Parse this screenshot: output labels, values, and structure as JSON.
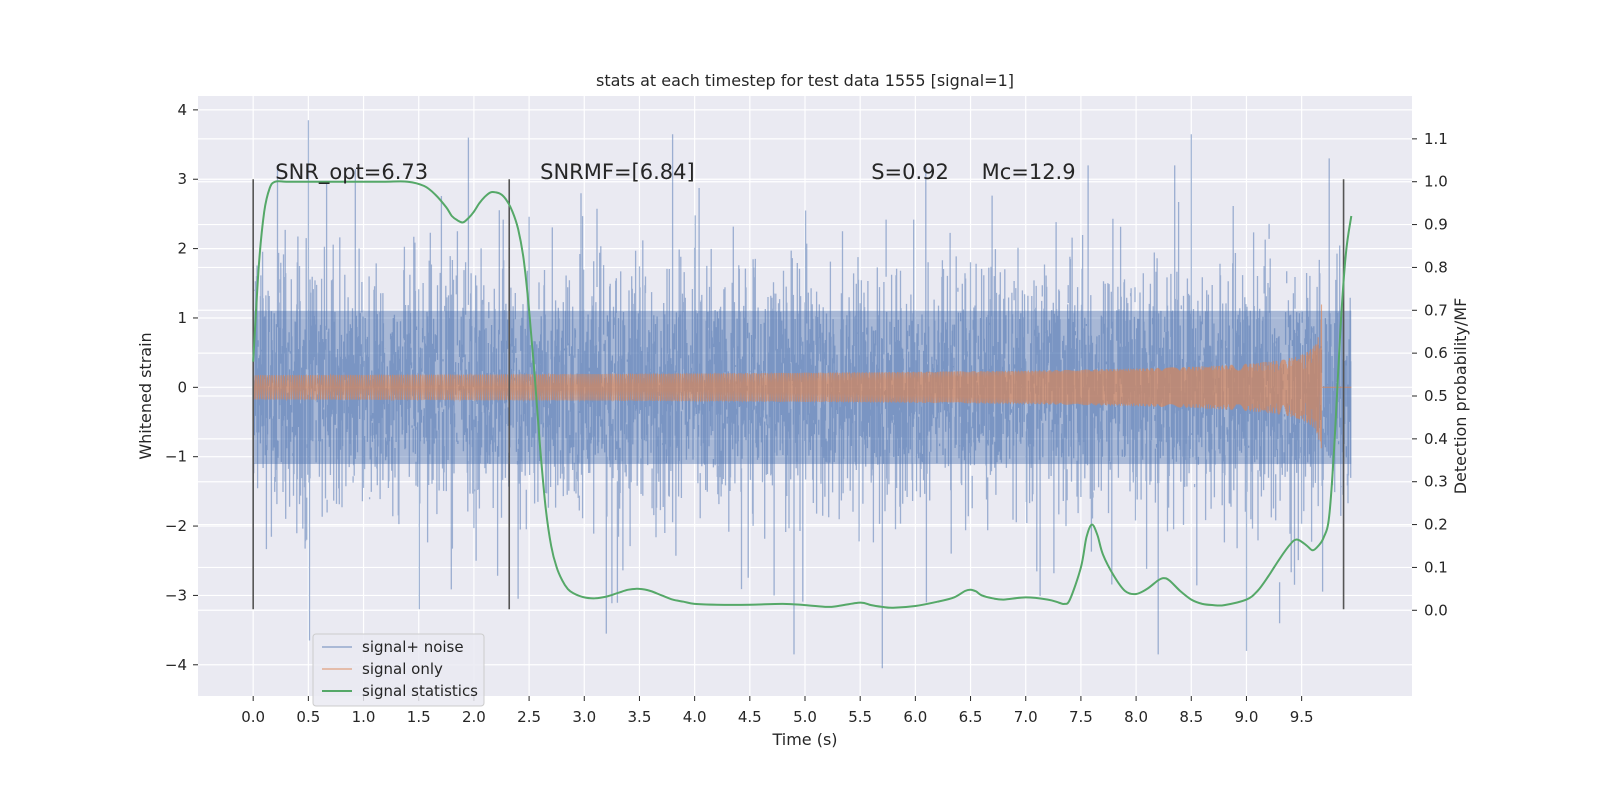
{
  "chart_data": {
    "type": "line",
    "title": "stats at each timestep for test data 1555 [signal=1]",
    "xlabel": "Time (s)",
    "ylabel": "Whitened strain",
    "y2label": "Detection probability/MF",
    "xlim": [
      -0.5,
      10.5
    ],
    "ylim": [
      -4.45,
      4.2
    ],
    "y2lim": [
      -0.2,
      1.2
    ],
    "x_ticks": [
      "0.0",
      "0.5",
      "1.0",
      "1.5",
      "2.0",
      "2.5",
      "3.0",
      "3.5",
      "4.0",
      "4.5",
      "5.0",
      "5.5",
      "6.0",
      "6.5",
      "7.0",
      "7.5",
      "8.0",
      "8.5",
      "9.0",
      "9.5"
    ],
    "y_ticks": [
      "−4",
      "−3",
      "−2",
      "−1",
      "0",
      "1",
      "2",
      "3",
      "4"
    ],
    "y2_ticks": [
      "0.0",
      "0.1",
      "0.2",
      "0.3",
      "0.4",
      "0.5",
      "0.6",
      "0.7",
      "0.8",
      "0.9",
      "1.0",
      "1.1"
    ],
    "grid": true,
    "legend_position": "lower-left",
    "colors": {
      "noise": "#4c72b0",
      "signal": "#dd8452",
      "stats": "#55a868",
      "marker": "#555555",
      "background": "#eaeaf2",
      "grid": "#ffffff"
    },
    "annotations": [
      {
        "text": "SNR_opt=6.73",
        "x": 0.2,
        "y": 3.0
      },
      {
        "text": "SNRMF=[6.84]",
        "x": 2.6,
        "y": 3.0
      },
      {
        "text": "S=0.92",
        "x": 5.6,
        "y": 3.0
      },
      {
        "text": "Mc=12.9",
        "x": 6.6,
        "y": 3.0
      }
    ],
    "vertical_markers": [
      0.0,
      2.32,
      9.88
    ],
    "marker_range": [
      -3.2,
      3.0
    ],
    "series": [
      {
        "name": "signal+ noise",
        "axis": "left",
        "style": "dense-noise",
        "x_range": [
          0.0,
          9.95
        ],
        "sample_interval": 0.005,
        "core_amplitude": 1.7,
        "peaks": [
          {
            "x": 0.5,
            "y": 3.85
          },
          {
            "x": 0.51,
            "y": -3.65
          },
          {
            "x": 1.95,
            "y": 3.6
          },
          {
            "x": 3.2,
            "y": -3.55
          },
          {
            "x": 3.8,
            "y": 3.65
          },
          {
            "x": 4.9,
            "y": -3.85
          },
          {
            "x": 5.7,
            "y": -4.05
          },
          {
            "x": 6.1,
            "y": -3.1
          },
          {
            "x": 8.2,
            "y": -3.85
          },
          {
            "x": 8.5,
            "y": 3.65
          },
          {
            "x": 9.0,
            "y": -3.8
          },
          {
            "x": 9.3,
            "y": -3.4
          },
          {
            "x": 9.75,
            "y": 3.3
          }
        ]
      },
      {
        "name": "signal only",
        "axis": "left",
        "style": "chirp",
        "x_range": [
          0.0,
          9.68
        ],
        "final_amplitude": 1.3
      },
      {
        "name": "signal statistics",
        "axis": "right",
        "style": "line",
        "x": [
          0.0,
          0.05,
          0.1,
          0.15,
          0.2,
          0.3,
          0.5,
          1.0,
          1.2,
          1.4,
          1.55,
          1.65,
          1.75,
          1.8,
          1.85,
          1.9,
          1.95,
          2.0,
          2.05,
          2.1,
          2.15,
          2.2,
          2.25,
          2.3,
          2.35,
          2.4,
          2.45,
          2.5,
          2.55,
          2.6,
          2.65,
          2.7,
          2.75,
          2.8,
          2.85,
          2.9,
          3.0,
          3.1,
          3.2,
          3.3,
          3.4,
          3.5,
          3.6,
          3.7,
          3.8,
          3.9,
          4.0,
          4.2,
          4.5,
          4.8,
          5.0,
          5.2,
          5.3,
          5.5,
          5.6,
          5.7,
          5.8,
          6.0,
          6.2,
          6.35,
          6.45,
          6.5,
          6.55,
          6.6,
          6.7,
          6.8,
          7.0,
          7.2,
          7.3,
          7.35,
          7.4,
          7.5,
          7.55,
          7.6,
          7.65,
          7.7,
          7.8,
          7.9,
          8.0,
          8.1,
          8.2,
          8.25,
          8.3,
          8.4,
          8.5,
          8.6,
          8.7,
          8.8,
          9.0,
          9.1,
          9.2,
          9.3,
          9.4,
          9.45,
          9.5,
          9.55,
          9.6,
          9.65,
          9.7,
          9.75,
          9.8,
          9.85,
          9.9,
          9.95
        ],
        "values": [
          0.58,
          0.8,
          0.93,
          0.985,
          1.0,
          1.0,
          1.0,
          1.0,
          1.0,
          1.0,
          0.99,
          0.97,
          0.94,
          0.92,
          0.91,
          0.905,
          0.915,
          0.93,
          0.95,
          0.965,
          0.975,
          0.975,
          0.97,
          0.955,
          0.93,
          0.89,
          0.82,
          0.7,
          0.55,
          0.38,
          0.24,
          0.15,
          0.1,
          0.07,
          0.05,
          0.04,
          0.03,
          0.028,
          0.032,
          0.04,
          0.048,
          0.05,
          0.045,
          0.035,
          0.025,
          0.02,
          0.015,
          0.013,
          0.013,
          0.015,
          0.012,
          0.008,
          0.01,
          0.018,
          0.012,
          0.008,
          0.006,
          0.01,
          0.02,
          0.03,
          0.045,
          0.048,
          0.044,
          0.035,
          0.028,
          0.025,
          0.03,
          0.025,
          0.018,
          0.015,
          0.025,
          0.1,
          0.17,
          0.2,
          0.175,
          0.13,
          0.08,
          0.045,
          0.038,
          0.05,
          0.07,
          0.075,
          0.07,
          0.045,
          0.025,
          0.015,
          0.012,
          0.012,
          0.025,
          0.045,
          0.08,
          0.12,
          0.155,
          0.165,
          0.16,
          0.15,
          0.14,
          0.15,
          0.17,
          0.22,
          0.4,
          0.65,
          0.83,
          0.92
        ]
      }
    ]
  }
}
